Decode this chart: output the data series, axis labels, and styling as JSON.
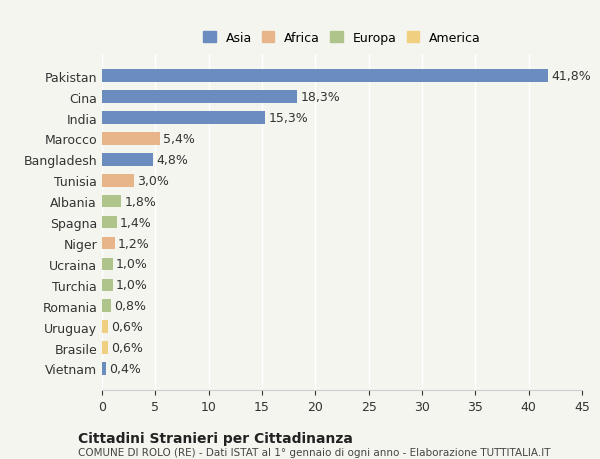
{
  "categories": [
    "Pakistan",
    "Cina",
    "India",
    "Marocco",
    "Bangladesh",
    "Tunisia",
    "Albania",
    "Spagna",
    "Niger",
    "Ucraina",
    "Turchia",
    "Romania",
    "Uruguay",
    "Brasile",
    "Vietnam"
  ],
  "values": [
    41.8,
    18.3,
    15.3,
    5.4,
    4.8,
    3.0,
    1.8,
    1.4,
    1.2,
    1.0,
    1.0,
    0.8,
    0.6,
    0.6,
    0.4
  ],
  "labels": [
    "41,8%",
    "18,3%",
    "15,3%",
    "5,4%",
    "4,8%",
    "3,0%",
    "1,8%",
    "1,4%",
    "1,2%",
    "1,0%",
    "1,0%",
    "0,8%",
    "0,6%",
    "0,6%",
    "0,4%"
  ],
  "colors": [
    "#6b8cbf",
    "#6b8cbf",
    "#6b8cbf",
    "#e8b48a",
    "#6b8cbf",
    "#e8b48a",
    "#aec48a",
    "#aec48a",
    "#e8b48a",
    "#aec48a",
    "#aec48a",
    "#aec48a",
    "#f0d080",
    "#f0d080",
    "#6b8cbf"
  ],
  "legend_labels": [
    "Asia",
    "Africa",
    "Europa",
    "America"
  ],
  "legend_colors": [
    "#6b8cbf",
    "#e8b48a",
    "#aec48a",
    "#f0d080"
  ],
  "xlim": [
    0,
    45
  ],
  "xticks": [
    0,
    5,
    10,
    15,
    20,
    25,
    30,
    35,
    40,
    45
  ],
  "title": "Cittadini Stranieri per Cittadinanza",
  "subtitle": "COMUNE DI ROLO (RE) - Dati ISTAT al 1° gennaio di ogni anno - Elaborazione TUTTITALIA.IT",
  "bg_color": "#f5f5f0",
  "bar_height": 0.6,
  "value_fontsize": 9,
  "label_fontsize": 9
}
